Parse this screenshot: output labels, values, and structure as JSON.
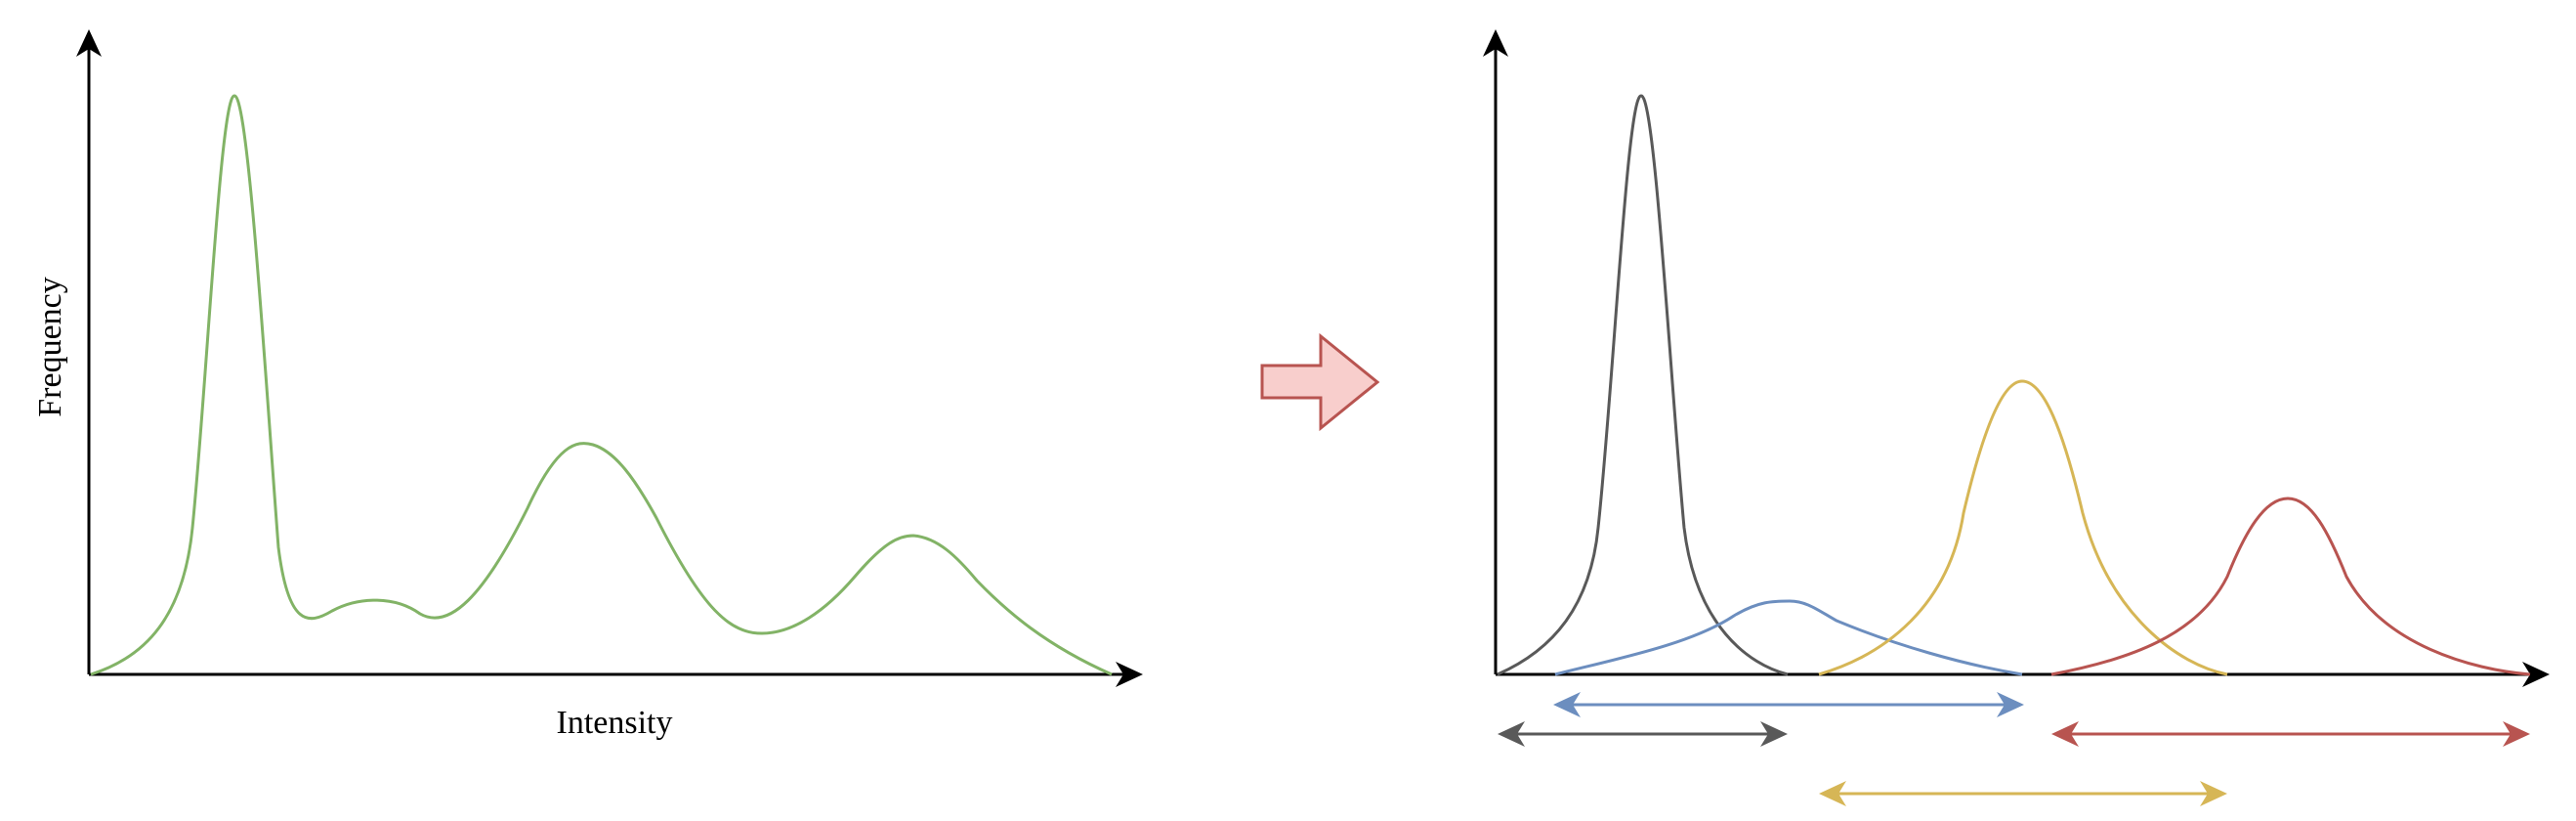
{
  "left_panel": {
    "ylabel": "Frequency",
    "xlabel": "Intensity",
    "curve_color": "#82b366"
  },
  "transition_arrow": {
    "fill": "#f8cecc",
    "stroke": "#b85450"
  },
  "right_panel": {
    "components": [
      {
        "color": "#595959",
        "range_arrow": "gray"
      },
      {
        "color": "#6c8ebf",
        "range_arrow": "blue"
      },
      {
        "color": "#d6b656",
        "range_arrow": "yellow"
      },
      {
        "color": "#b85450",
        "range_arrow": "red"
      }
    ]
  }
}
